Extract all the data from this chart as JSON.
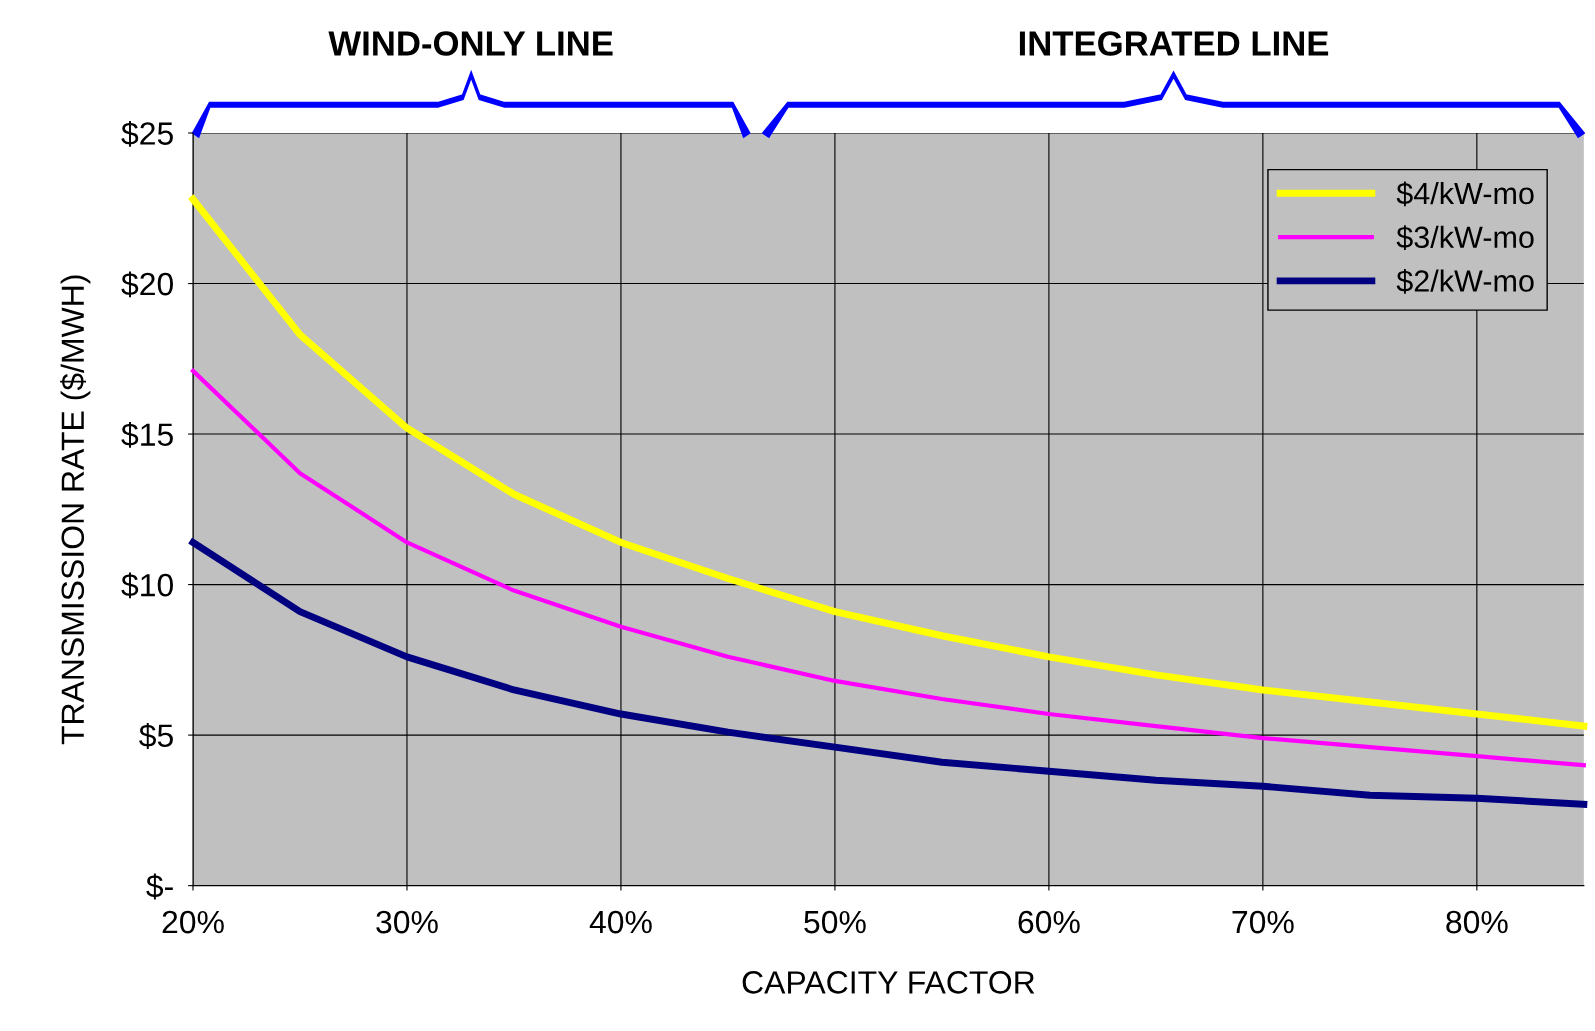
{
  "chart_data": {
    "type": "line",
    "xlabel": "CAPACITY FACTOR",
    "ylabel": "TRANSMISSION RATE ($/MWH)",
    "annotations": [
      "WIND-ONLY LINE",
      "INTEGRATED LINE"
    ],
    "x": [
      20,
      25,
      30,
      35,
      40,
      45,
      50,
      55,
      60,
      65,
      70,
      75,
      80,
      85
    ],
    "series": [
      {
        "name": "$4/kW-mo",
        "color": "#ffff00",
        "values": [
          22.8,
          18.3,
          15.2,
          13.0,
          11.4,
          10.2,
          9.1,
          8.3,
          7.6,
          7.0,
          6.5,
          6.1,
          5.7,
          5.3
        ]
      },
      {
        "name": "$3/kW-mo",
        "color": "#ff00ff",
        "values": [
          17.1,
          13.7,
          11.4,
          9.8,
          8.6,
          7.6,
          6.8,
          6.2,
          5.7,
          5.3,
          4.9,
          4.6,
          4.3,
          4.0
        ]
      },
      {
        "name": "$2/kW-mo",
        "color": "#000080",
        "values": [
          11.4,
          9.1,
          7.6,
          6.5,
          5.7,
          5.1,
          4.6,
          4.1,
          3.8,
          3.5,
          3.3,
          3.0,
          2.9,
          2.7
        ]
      }
    ],
    "xlim": [
      20,
      85
    ],
    "xticks": [
      {
        "value": 20,
        "label": "20%"
      },
      {
        "value": 30,
        "label": "30%"
      },
      {
        "value": 40,
        "label": "40%"
      },
      {
        "value": 50,
        "label": "50%"
      },
      {
        "value": 60,
        "label": "60%"
      },
      {
        "value": 70,
        "label": "70%"
      },
      {
        "value": 80,
        "label": "80%"
      }
    ],
    "ylim": [
      0,
      25
    ],
    "yticks": [
      {
        "value": 0,
        "label": "$-"
      },
      {
        "value": 5,
        "label": "$5"
      },
      {
        "value": 10,
        "label": "$10"
      },
      {
        "value": 15,
        "label": "$15"
      },
      {
        "value": 20,
        "label": "$20"
      },
      {
        "value": 25,
        "label": "$25"
      }
    ],
    "grid": true,
    "legend": "top right",
    "marker": "none",
    "line_style": "solid"
  }
}
